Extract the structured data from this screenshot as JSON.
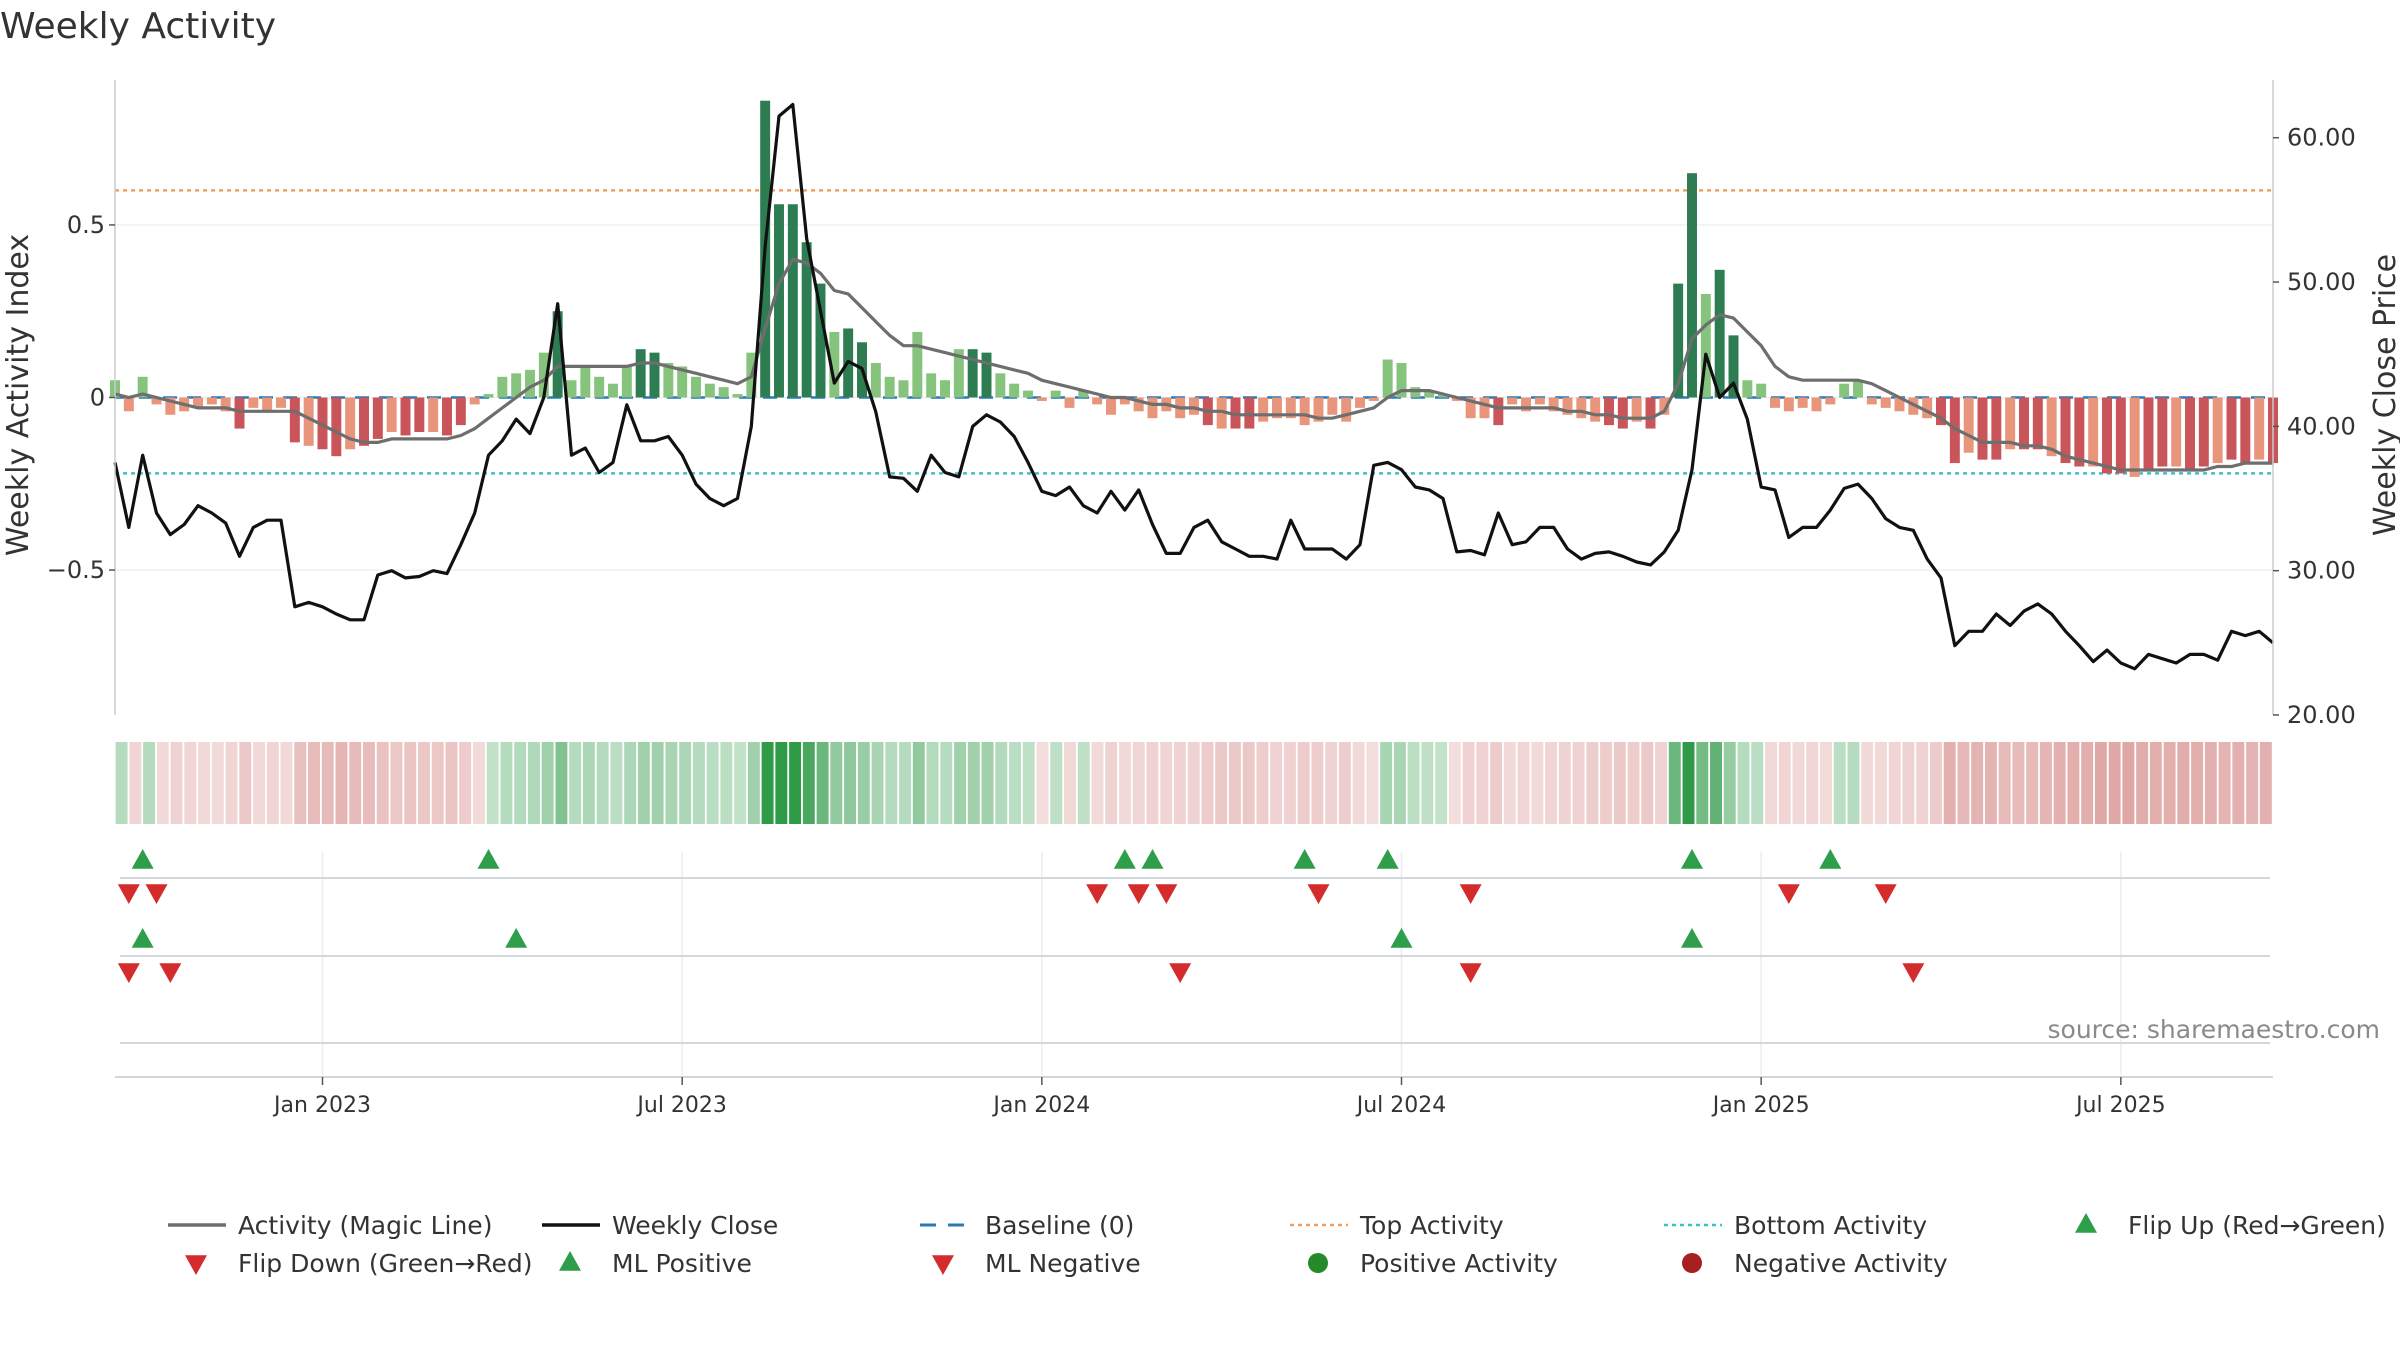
{
  "chart_data": {
    "type": "bar",
    "title": "Weekly Activity",
    "ylabel_left": "Weekly Activity Index",
    "ylabel_right": "Weekly Close Price",
    "yticks_left": [
      {
        "value": 0.5,
        "label": "0.5"
      },
      {
        "value": 0,
        "label": "0"
      },
      {
        "value": -0.5,
        "label": "−0.5"
      }
    ],
    "yticks_right": [
      {
        "value": 60,
        "label": "60.00"
      },
      {
        "value": 50,
        "label": "50.00"
      },
      {
        "value": 40,
        "label": "40.00"
      },
      {
        "value": 30,
        "label": "30.00"
      },
      {
        "value": 20,
        "label": "20.00"
      }
    ],
    "ylim_left": [
      -0.92,
      0.92
    ],
    "ylim_right": [
      20,
      64
    ],
    "x_range_weeks": [
      0,
      156
    ],
    "xticks": [
      {
        "week": 15,
        "label": "Jan 2023"
      },
      {
        "week": 41,
        "label": "Jul 2023"
      },
      {
        "week": 67,
        "label": "Jan 2024"
      },
      {
        "week": 93,
        "label": "Jul 2024"
      },
      {
        "week": 119,
        "label": "Jan 2025"
      },
      {
        "week": 145,
        "label": "Jul 2025"
      }
    ],
    "levels": {
      "top": 0.6,
      "bottom": -0.22,
      "baseline": 0
    },
    "activity": [
      0.05,
      -0.04,
      0.06,
      -0.02,
      -0.05,
      -0.04,
      -0.03,
      -0.02,
      -0.04,
      -0.09,
      -0.03,
      -0.04,
      -0.03,
      -0.13,
      -0.14,
      -0.15,
      -0.17,
      -0.15,
      -0.14,
      -0.12,
      -0.1,
      -0.11,
      -0.1,
      -0.1,
      -0.11,
      -0.08,
      -0.02,
      0.01,
      0.06,
      0.07,
      0.08,
      0.13,
      0.25,
      0.05,
      0.09,
      0.06,
      0.04,
      0.09,
      0.14,
      0.13,
      0.1,
      0.09,
      0.06,
      0.04,
      0.03,
      0.01,
      0.13,
      0.86,
      0.56,
      0.56,
      0.45,
      0.33,
      0.19,
      0.2,
      0.16,
      0.1,
      0.06,
      0.05,
      0.19,
      0.07,
      0.05,
      0.14,
      0.14,
      0.13,
      0.07,
      0.04,
      0.02,
      -0.01,
      0.02,
      -0.03,
      0.02,
      -0.02,
      -0.05,
      -0.02,
      -0.04,
      -0.06,
      -0.04,
      -0.06,
      -0.05,
      -0.08,
      -0.09,
      -0.09,
      -0.09,
      -0.07,
      -0.06,
      -0.06,
      -0.08,
      -0.07,
      -0.05,
      -0.07,
      -0.03,
      -0.01,
      0.11,
      0.1,
      0.03,
      0.02,
      0.01,
      -0.01,
      -0.06,
      -0.06,
      -0.08,
      -0.02,
      -0.04,
      -0.02,
      -0.04,
      -0.05,
      -0.06,
      -0.07,
      -0.08,
      -0.09,
      -0.07,
      -0.09,
      -0.05,
      0.33,
      0.65,
      0.3,
      0.37,
      0.18,
      0.05,
      0.04,
      -0.03,
      -0.04,
      -0.03,
      -0.04,
      -0.02,
      0.04,
      0.05,
      -0.02,
      -0.03,
      -0.04,
      -0.05,
      -0.06,
      -0.08,
      -0.19,
      -0.16,
      -0.18,
      -0.18,
      -0.15,
      -0.15,
      -0.15,
      -0.17,
      -0.19,
      -0.2,
      -0.2,
      -0.22,
      -0.22,
      -0.23,
      -0.21,
      -0.2,
      -0.2,
      -0.21,
      -0.2,
      -0.19,
      -0.18,
      -0.19,
      -0.18,
      -0.19
    ],
    "magic_line": [
      0.01,
      0.0,
      0.01,
      0.0,
      -0.01,
      -0.02,
      -0.03,
      -0.03,
      -0.03,
      -0.04,
      -0.04,
      -0.04,
      -0.04,
      -0.04,
      -0.06,
      -0.08,
      -0.1,
      -0.12,
      -0.13,
      -0.13,
      -0.12,
      -0.12,
      -0.12,
      -0.12,
      -0.12,
      -0.11,
      -0.09,
      -0.06,
      -0.03,
      0.0,
      0.03,
      0.05,
      0.09,
      0.09,
      0.09,
      0.09,
      0.09,
      0.09,
      0.1,
      0.1,
      0.09,
      0.08,
      0.07,
      0.06,
      0.05,
      0.04,
      0.06,
      0.2,
      0.33,
      0.4,
      0.39,
      0.36,
      0.31,
      0.3,
      0.26,
      0.22,
      0.18,
      0.15,
      0.15,
      0.14,
      0.13,
      0.12,
      0.11,
      0.1,
      0.09,
      0.08,
      0.07,
      0.05,
      0.04,
      0.03,
      0.02,
      0.01,
      0.0,
      0.0,
      -0.01,
      -0.02,
      -0.02,
      -0.03,
      -0.03,
      -0.04,
      -0.04,
      -0.05,
      -0.05,
      -0.05,
      -0.05,
      -0.05,
      -0.05,
      -0.06,
      -0.06,
      -0.05,
      -0.04,
      -0.03,
      0.0,
      0.02,
      0.02,
      0.02,
      0.01,
      0.0,
      -0.01,
      -0.02,
      -0.03,
      -0.03,
      -0.03,
      -0.03,
      -0.03,
      -0.04,
      -0.04,
      -0.05,
      -0.05,
      -0.06,
      -0.06,
      -0.06,
      -0.04,
      0.04,
      0.17,
      0.21,
      0.24,
      0.23,
      0.19,
      0.15,
      0.09,
      0.06,
      0.05,
      0.05,
      0.05,
      0.05,
      0.05,
      0.04,
      0.02,
      0.0,
      -0.02,
      -0.04,
      -0.06,
      -0.09,
      -0.11,
      -0.13,
      -0.13,
      -0.13,
      -0.14,
      -0.14,
      -0.15,
      -0.17,
      -0.18,
      -0.19,
      -0.2,
      -0.21,
      -0.21,
      -0.21,
      -0.21,
      -0.21,
      -0.21,
      -0.21,
      -0.2,
      -0.2,
      -0.19,
      -0.19,
      -0.19
    ],
    "weekly_close": [
      37.5,
      33.0,
      38.0,
      34.0,
      32.5,
      33.2,
      34.5,
      34.0,
      33.3,
      31.0,
      33.0,
      33.5,
      33.5,
      27.5,
      27.8,
      27.5,
      27.0,
      26.6,
      26.6,
      29.7,
      30.0,
      29.5,
      29.6,
      30.0,
      29.8,
      31.8,
      34.0,
      38.0,
      39.0,
      40.5,
      39.5,
      42.0,
      48.5,
      38.0,
      38.5,
      36.8,
      37.5,
      41.5,
      39.0,
      39.0,
      39.3,
      38.0,
      36.0,
      35.0,
      34.5,
      35.0,
      40.0,
      52.5,
      61.5,
      62.3,
      53.0,
      48.0,
      43.0,
      44.5,
      44.0,
      41.0,
      36.5,
      36.4,
      35.5,
      38.0,
      36.8,
      36.5,
      40.0,
      40.8,
      40.3,
      39.3,
      37.5,
      35.5,
      35.2,
      35.8,
      34.5,
      34.0,
      35.5,
      34.2,
      35.6,
      33.2,
      31.2,
      31.2,
      33.0,
      33.5,
      32.0,
      31.5,
      31.0,
      31.0,
      30.8,
      33.5,
      31.5,
      31.5,
      31.5,
      30.8,
      31.8,
      37.3,
      37.5,
      37.0,
      35.8,
      35.6,
      35.0,
      31.3,
      31.4,
      31.1,
      34.0,
      31.8,
      32.0,
      33.0,
      33.0,
      31.5,
      30.8,
      31.2,
      31.3,
      31.0,
      30.6,
      30.4,
      31.3,
      32.8,
      37.0,
      45.0,
      42.0,
      43.0,
      40.5,
      35.8,
      35.6,
      32.3,
      33.0,
      33.0,
      34.2,
      35.7,
      36.0,
      35.0,
      33.6,
      33.0,
      32.8,
      30.8,
      29.5,
      24.8,
      25.8,
      25.8,
      27.0,
      26.2,
      27.2,
      27.7,
      27.0,
      25.8,
      24.8,
      23.7,
      24.5,
      23.6,
      23.2,
      24.2,
      23.9,
      23.6,
      24.2,
      24.2,
      23.8,
      25.8,
      25.5,
      25.8,
      25.0
    ],
    "heat_strip_weeks": 157,
    "signal_rows": [
      {
        "name": "flip-up",
        "symbol": "triangle-up",
        "color": "#2e9e4a",
        "weeks": [
          2,
          27,
          73,
          75,
          86,
          92,
          114,
          124
        ]
      },
      {
        "name": "flip-down",
        "symbol": "triangle-down",
        "color": "#d42c2c",
        "weeks": [
          1,
          3,
          71,
          74,
          76,
          87,
          98,
          121,
          128
        ]
      },
      {
        "name": "ml-positive",
        "symbol": "triangle-up",
        "color": "#2e9e4a",
        "weeks": [
          2,
          29,
          93,
          114
        ]
      },
      {
        "name": "ml-negative",
        "symbol": "triangle-down",
        "color": "#d42c2c",
        "weeks": [
          1,
          4,
          77,
          98,
          130
        ]
      }
    ],
    "legend": [
      {
        "key": "magic",
        "label": "Activity (Magic Line)",
        "kind": "line",
        "color": "#6e6e6e"
      },
      {
        "key": "close",
        "label": "Weekly Close",
        "kind": "line",
        "color": "#111111"
      },
      {
        "key": "baseline",
        "label": "Baseline (0)",
        "kind": "dash",
        "color": "#2a7ab5"
      },
      {
        "key": "top",
        "label": "Top Activity",
        "kind": "dot",
        "color": "#f0a060"
      },
      {
        "key": "bottom",
        "label": "Bottom Activity",
        "kind": "dot",
        "color": "#3cc2c8"
      },
      {
        "key": "flip-up",
        "label": "Flip Up (Red→Green)",
        "kind": "tri-up",
        "color": "#2e9e4a"
      },
      {
        "key": "flip-down",
        "label": "Flip Down (Green→Red)",
        "kind": "tri-down",
        "color": "#d42c2c"
      },
      {
        "key": "ml-positive",
        "label": "ML Positive",
        "kind": "tri-up",
        "color": "#2e9e4a"
      },
      {
        "key": "ml-negative",
        "label": "ML Negative",
        "kind": "tri-down",
        "color": "#d42c2c"
      },
      {
        "key": "positive-activity",
        "label": "Positive Activity",
        "kind": "circle",
        "color": "#248a2a"
      },
      {
        "key": "negative-activity",
        "label": "Negative Activity",
        "kind": "circle",
        "color": "#a81f1f"
      }
    ],
    "colors": {
      "pos_strong": "#2e7d52",
      "pos_light": "#86c47e",
      "neg_strong": "#c9545a",
      "neg_light": "#e8957c",
      "magic": "#6e6e6e",
      "close": "#111111",
      "baseline": "#2a7ab5",
      "top": "#f0a060",
      "bottom": "#3cc2c8"
    },
    "source": "source: sharemaestro.com"
  }
}
